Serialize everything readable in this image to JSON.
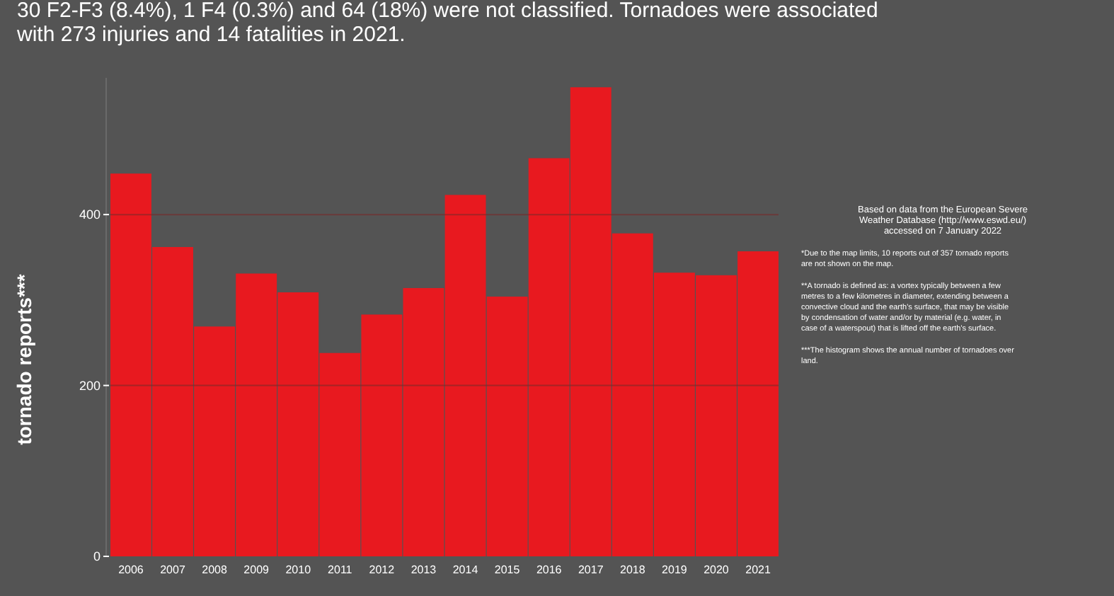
{
  "chart_data": {
    "type": "bar",
    "ylabel": "tornado reports***",
    "categories": [
      "2006",
      "2007",
      "2008",
      "2009",
      "2010",
      "2011",
      "2012",
      "2013",
      "2014",
      "2015",
      "2016",
      "2017",
      "2018",
      "2019",
      "2020",
      "2021"
    ],
    "values": [
      448,
      362,
      269,
      331,
      309,
      238,
      283,
      314,
      423,
      304,
      466,
      549,
      378,
      332,
      329,
      357
    ],
    "color": "#e8191f",
    "ylim": [
      0,
      560
    ],
    "yticks": [
      0,
      200,
      400
    ],
    "grid": "y",
    "annotations": [
      "30 F2-F3 (8.4%), 1 F4 (0.3%) and 64 (18%) were not classified. Tornadoes were associated",
      "with 273 injuries and 14 fatalities in 2021.",
      "Based on data from the European Severe Weather Database (http://www.eswd.eu/) accessed on 7 January 2022",
      "*Due to the map limits, 10 reports out of 357 tornado reports are not shown on the map.",
      "**A tornado is defined as: a vortex typically between a few metres to a few kilometres in diameter, extending between a convective cloud and the earth's surface, that may be visible by condensation of water and/or by material (e.g. water, in case of a waterspout) that is lifted off the earth's surface.",
      "***The histogram shows the annual number of tornadoes over land."
    ]
  }
}
